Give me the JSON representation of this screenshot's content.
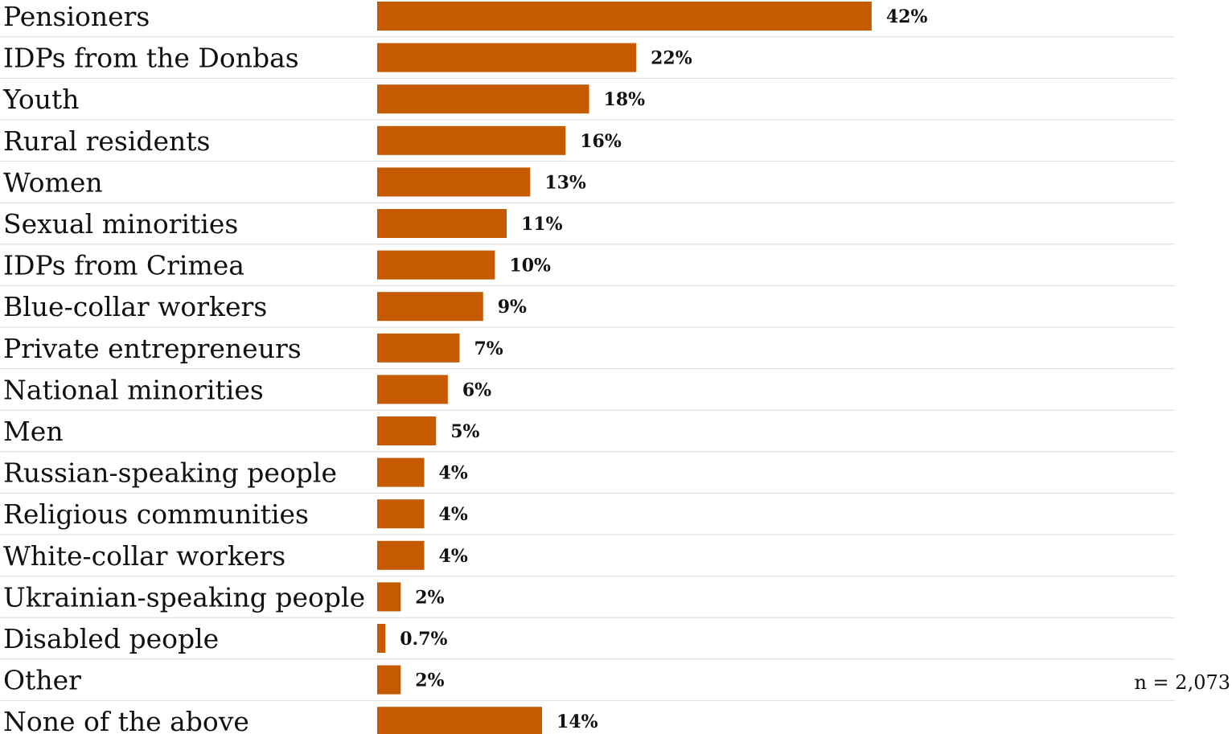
{
  "chart_data": {
    "type": "bar",
    "orientation": "horizontal",
    "categories": [
      "Pensioners",
      "IDPs from the Donbas",
      "Youth",
      "Rural residents",
      "Women",
      "Sexual minorities",
      "IDPs from Crimea",
      "Blue-collar workers",
      "Private entrepreneurs",
      "National minorities",
      "Men",
      "Russian-speaking people",
      "Religious communities",
      "White-collar workers",
      "Ukrainian-speaking people",
      "Disabled people",
      "Other",
      "None of the above"
    ],
    "values": [
      42,
      22,
      18,
      16,
      13,
      11,
      10,
      9,
      7,
      6,
      5,
      4,
      4,
      4,
      2,
      0.7,
      2,
      14
    ],
    "value_labels": [
      "42%",
      "22%",
      "18%",
      "16%",
      "13%",
      "11%",
      "10%",
      "9%",
      "7%",
      "6%",
      "5%",
      "4%",
      "4%",
      "4%",
      "2%",
      "0.7%",
      "2%",
      "14%"
    ],
    "note": "n = 2,073",
    "bar_color": "#c55a00",
    "grid": false,
    "legend": "none"
  }
}
